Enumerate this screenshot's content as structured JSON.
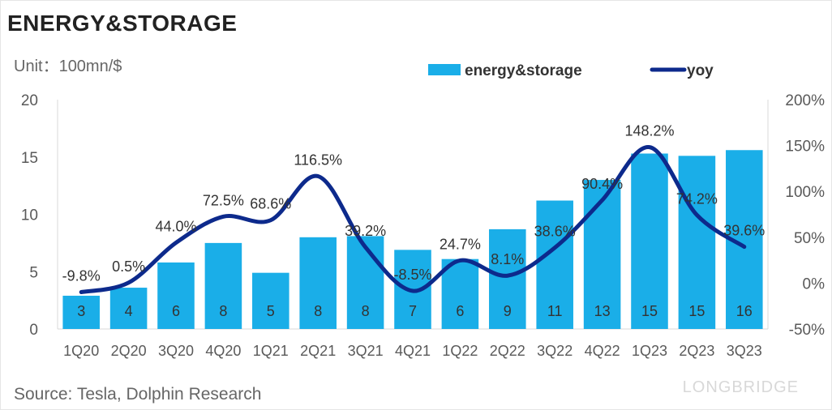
{
  "title": "ENERGY&STORAGE",
  "unit": "Unit：100mn/$",
  "source": "Source: Tesla, Dolphin Research",
  "watermark": "LONGBRIDGE",
  "colors": {
    "bar": "#1AAEE8",
    "line": "#0D2A8C",
    "text": "#595959"
  },
  "chart_data": {
    "type": "bar+line",
    "title": "ENERGY&STORAGE",
    "categories": [
      "1Q20",
      "2Q20",
      "3Q20",
      "4Q20",
      "1Q21",
      "2Q21",
      "3Q21",
      "4Q21",
      "1Q22",
      "2Q22",
      "3Q22",
      "4Q22",
      "1Q23",
      "2Q23",
      "3Q23"
    ],
    "series": [
      {
        "name": "energy&storage",
        "type": "bar",
        "axis": "left",
        "values": [
          2.9,
          3.6,
          5.8,
          7.5,
          4.9,
          8.0,
          8.1,
          6.9,
          6.1,
          8.7,
          11.2,
          13.0,
          15.3,
          15.1,
          15.6
        ],
        "labels": [
          "3",
          "4",
          "6",
          "8",
          "5",
          "8",
          "8",
          "7",
          "6",
          "9",
          "11",
          "13",
          "15",
          "15",
          "16"
        ]
      },
      {
        "name": "yoy",
        "type": "line",
        "axis": "right",
        "values": [
          -9.8,
          0.5,
          44.0,
          72.5,
          68.6,
          116.5,
          39.2,
          -8.5,
          24.7,
          8.1,
          38.6,
          90.4,
          148.2,
          74.2,
          39.6
        ],
        "labels": [
          "-9.8%",
          "0.5%",
          "44.0%",
          "72.5%",
          "68.6%",
          "116.5%",
          "39.2%",
          "-8.5%",
          "24.7%",
          "8.1%",
          "38.6%",
          "90.4%",
          "148.2%",
          "74.2%",
          "39.6%"
        ]
      }
    ],
    "left_axis": {
      "ylim": [
        0,
        20
      ],
      "ticks": [
        "0",
        "5",
        "10",
        "15",
        "20"
      ]
    },
    "right_axis": {
      "ylim": [
        -50,
        200
      ],
      "ticks": [
        "-50%",
        "0%",
        "50%",
        "100%",
        "150%",
        "200%"
      ]
    },
    "legend": "top-right",
    "grid": false
  }
}
